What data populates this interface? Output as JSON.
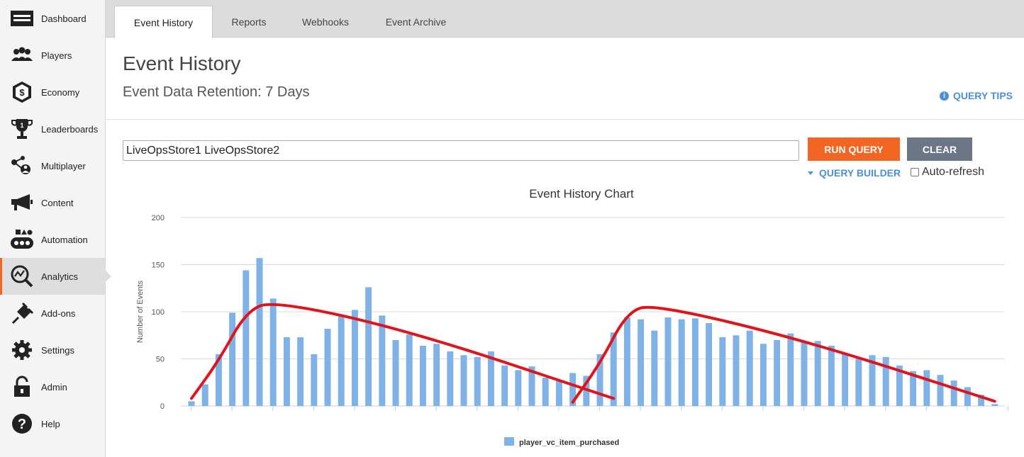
{
  "sidebar": {
    "items": [
      {
        "label": "Dashboard",
        "icon": "dashboard-icon"
      },
      {
        "label": "Players",
        "icon": "players-icon"
      },
      {
        "label": "Economy",
        "icon": "economy-icon"
      },
      {
        "label": "Leaderboards",
        "icon": "trophy-icon"
      },
      {
        "label": "Multiplayer",
        "icon": "multiplayer-icon"
      },
      {
        "label": "Content",
        "icon": "megaphone-icon"
      },
      {
        "label": "Automation",
        "icon": "automation-icon"
      },
      {
        "label": "Analytics",
        "icon": "analytics-icon",
        "active": true
      },
      {
        "label": "Add-ons",
        "icon": "plug-icon"
      },
      {
        "label": "Settings",
        "icon": "gear-icon"
      },
      {
        "label": "Admin",
        "icon": "lock-icon"
      },
      {
        "label": "Help",
        "icon": "help-icon"
      }
    ]
  },
  "tabs": [
    {
      "label": "Event History",
      "active": true
    },
    {
      "label": "Reports"
    },
    {
      "label": "Webhooks"
    },
    {
      "label": "Event Archive"
    }
  ],
  "page": {
    "title": "Event History",
    "retention": "Event Data Retention: 7 Days",
    "query_tips": "QUERY TIPS"
  },
  "query": {
    "value": "LiveOpsStore1 LiveOpsStore2",
    "run_label": "RUN QUERY",
    "clear_label": "CLEAR",
    "builder_label": "QUERY BUILDER",
    "autorefresh_label": "Auto-refresh",
    "autorefresh_checked": false
  },
  "colors": {
    "accent": "#f26522",
    "link": "#4a90d9",
    "bar": "#7fb3e8",
    "clear_btn": "#6b7787",
    "annotation": "#e0141c"
  },
  "chart_data": {
    "type": "bar",
    "title": "Event History Chart",
    "ylabel": "Number of Events",
    "xlabel": "",
    "ylim": [
      0,
      200
    ],
    "yticks": [
      0,
      50,
      100,
      150,
      200
    ],
    "grid": true,
    "legend_position": "bottom",
    "series": [
      {
        "name": "player_vc_item_purchased",
        "values": [
          5,
          23,
          55,
          99,
          144,
          157,
          114,
          73,
          73,
          55,
          82,
          95,
          102,
          126,
          96,
          70,
          76,
          64,
          66,
          58,
          54,
          52,
          58,
          43,
          38,
          42,
          30,
          27,
          35,
          32,
          55,
          78,
          94,
          92,
          80,
          94,
          92,
          93,
          88,
          73,
          75,
          80,
          66,
          70,
          77,
          68,
          69,
          64,
          55,
          50,
          54,
          52,
          43,
          37,
          38,
          33,
          27,
          20,
          12,
          2
        ]
      }
    ],
    "annotation_curves": [
      {
        "points": [
          [
            0,
            8
          ],
          [
            2,
            48
          ],
          [
            4,
            100
          ],
          [
            6,
            112
          ],
          [
            16,
            80
          ],
          [
            31,
            8
          ]
        ]
      },
      {
        "points": [
          [
            28,
            4
          ],
          [
            30,
            45
          ],
          [
            32,
            100
          ],
          [
            34,
            108
          ],
          [
            45,
            70
          ],
          [
            59,
            5
          ]
        ]
      }
    ]
  }
}
